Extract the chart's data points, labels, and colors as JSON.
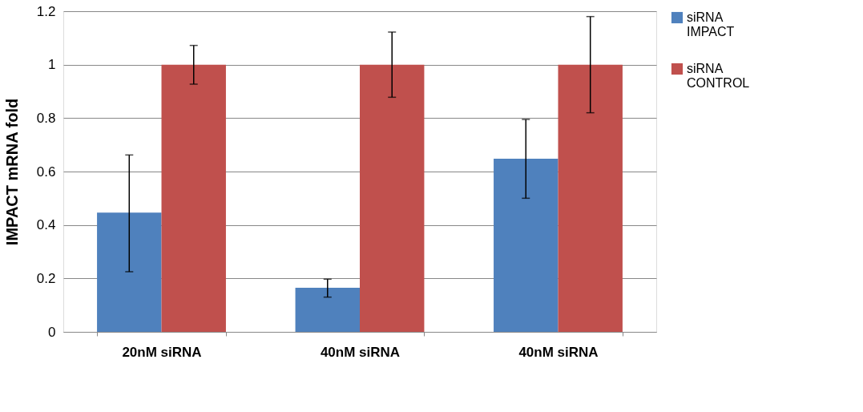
{
  "chart_data": {
    "type": "bar",
    "ylabel": "IMPACT mRNA fold",
    "categories": [
      "20nM siRNA",
      "40nM siRNA",
      "40nM siRNA"
    ],
    "series": [
      {
        "name": "siRNA IMPACT",
        "color": "#4f81bd",
        "values": [
          0.446,
          0.165,
          0.648
        ],
        "errors": [
          [
            0.225,
            0.662
          ],
          [
            0.13,
            0.197
          ],
          [
            0.5,
            0.795
          ]
        ]
      },
      {
        "name": "siRNA CONTROL",
        "color": "#c0504d",
        "values": [
          1,
          1,
          1
        ],
        "errors": [
          [
            0.927,
            1.072
          ],
          [
            0.878,
            1.122
          ],
          [
            0.82,
            1.18
          ]
        ]
      }
    ],
    "ylim": [
      0,
      1.2
    ],
    "yticks": [
      0,
      0.2,
      0.4,
      0.6,
      0.8,
      1,
      1.2
    ],
    "grid": "y",
    "legend": "right"
  }
}
